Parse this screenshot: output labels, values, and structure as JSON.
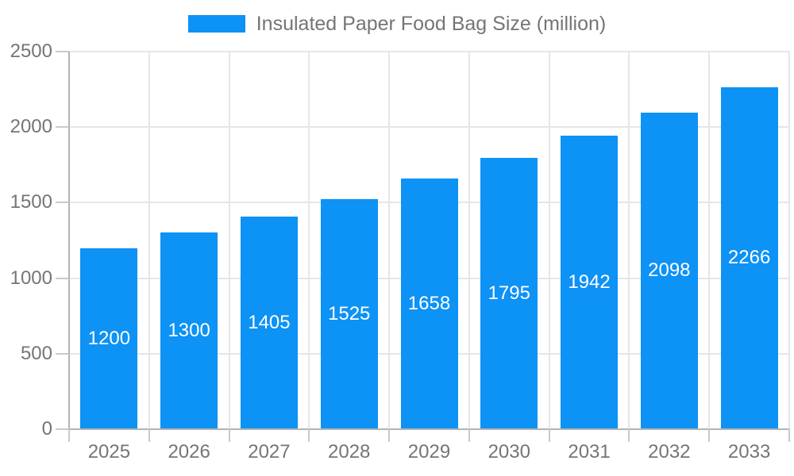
{
  "chart_data": {
    "type": "bar",
    "title": "",
    "categories": [
      "2025",
      "2026",
      "2027",
      "2028",
      "2029",
      "2030",
      "2031",
      "2032",
      "2033"
    ],
    "series": [
      {
        "name": "Insulated Paper Food Bag Size (million)",
        "values": [
          1200,
          1300,
          1405,
          1525,
          1658,
          1795,
          1942,
          2098,
          2266
        ]
      }
    ],
    "value_labels_position": "inside-center",
    "xlabel": "",
    "ylabel": "",
    "ylim": [
      0,
      2500
    ],
    "ytick_step": 500,
    "yticks": [
      "0",
      "500",
      "1000",
      "1500",
      "2000",
      "2500"
    ],
    "grid": true,
    "legend_position": "top-center",
    "colors": {
      "bar": "#0d92f5",
      "value_label": "#ffffff",
      "axis_text": "#757575",
      "grid_line": "#e6e6e6",
      "axis_line": "#b3b3b3",
      "tick": "#c9c9c9",
      "background": "#ffffff"
    }
  }
}
